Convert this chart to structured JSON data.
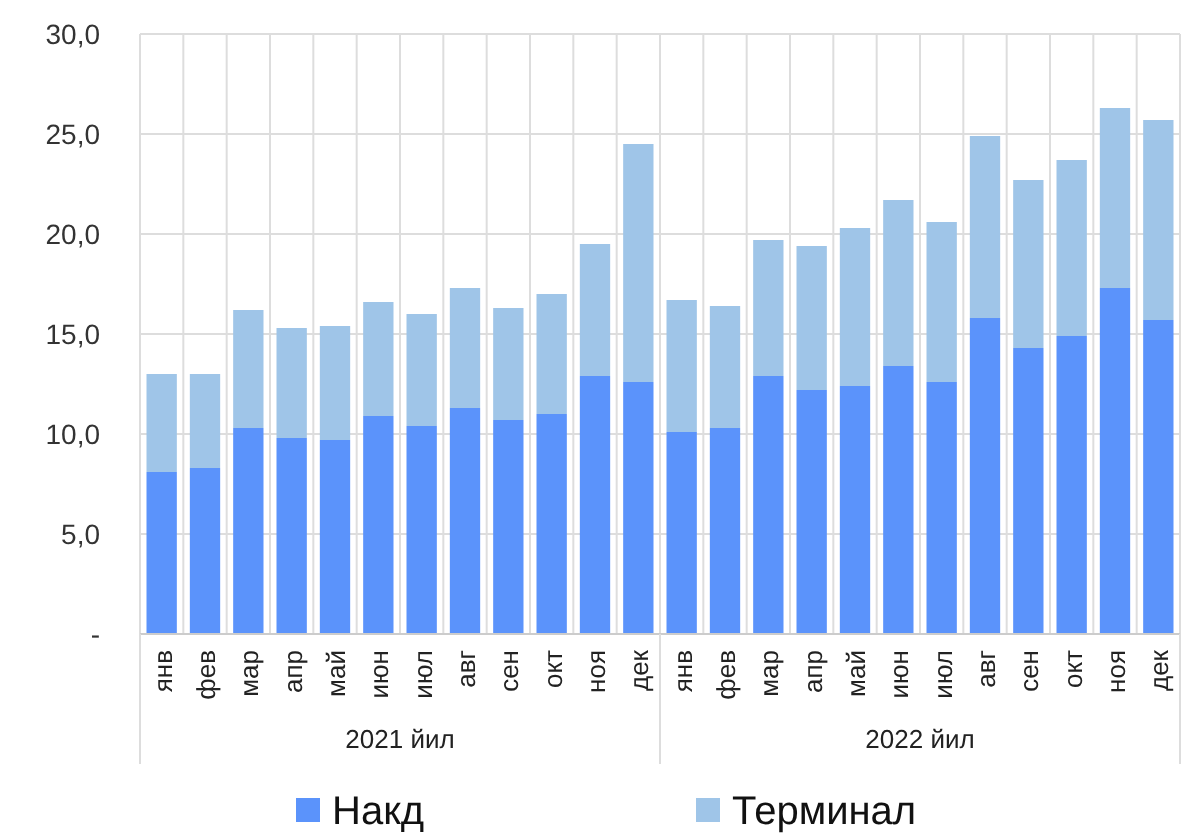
{
  "chart_data": {
    "type": "bar",
    "stacked": true,
    "categories": [
      "янв",
      "фев",
      "мар",
      "апр",
      "май",
      "июн",
      "июл",
      "авг",
      "сен",
      "окт",
      "ноя",
      "дек",
      "янв",
      "фев",
      "мар",
      "апр",
      "май",
      "июн",
      "июл",
      "авг",
      "сен",
      "окт",
      "ноя",
      "дек"
    ],
    "series": [
      {
        "name": "Накд",
        "color": "#5b93fb",
        "values": [
          8.1,
          8.3,
          10.3,
          9.8,
          9.7,
          10.9,
          10.4,
          11.3,
          10.7,
          11.0,
          12.9,
          12.6,
          10.1,
          10.3,
          12.9,
          12.2,
          12.4,
          13.4,
          12.6,
          15.8,
          14.3,
          14.9,
          17.3,
          15.7
        ]
      },
      {
        "name": "Терминал",
        "color": "#9fc5e8",
        "values": [
          4.9,
          4.7,
          5.9,
          5.5,
          5.7,
          5.7,
          5.6,
          6.0,
          5.6,
          6.0,
          6.6,
          11.9,
          6.6,
          6.1,
          6.8,
          7.2,
          7.9,
          8.3,
          8.0,
          9.1,
          8.4,
          8.8,
          9.0,
          10.0
        ]
      }
    ],
    "annotations": [
      "2021 йил",
      "2022 йил"
    ],
    "ylim": [
      0,
      30
    ],
    "yticks": [
      {
        "value": 0,
        "label": "-"
      },
      {
        "value": 5,
        "label": "5,0"
      },
      {
        "value": 10,
        "label": "10,0"
      },
      {
        "value": 15,
        "label": "15,0"
      },
      {
        "value": 20,
        "label": "20,0"
      },
      {
        "value": 25,
        "label": "25,0"
      },
      {
        "value": 30,
        "label": "30,0"
      }
    ],
    "grid": true,
    "legend": "bottom"
  }
}
